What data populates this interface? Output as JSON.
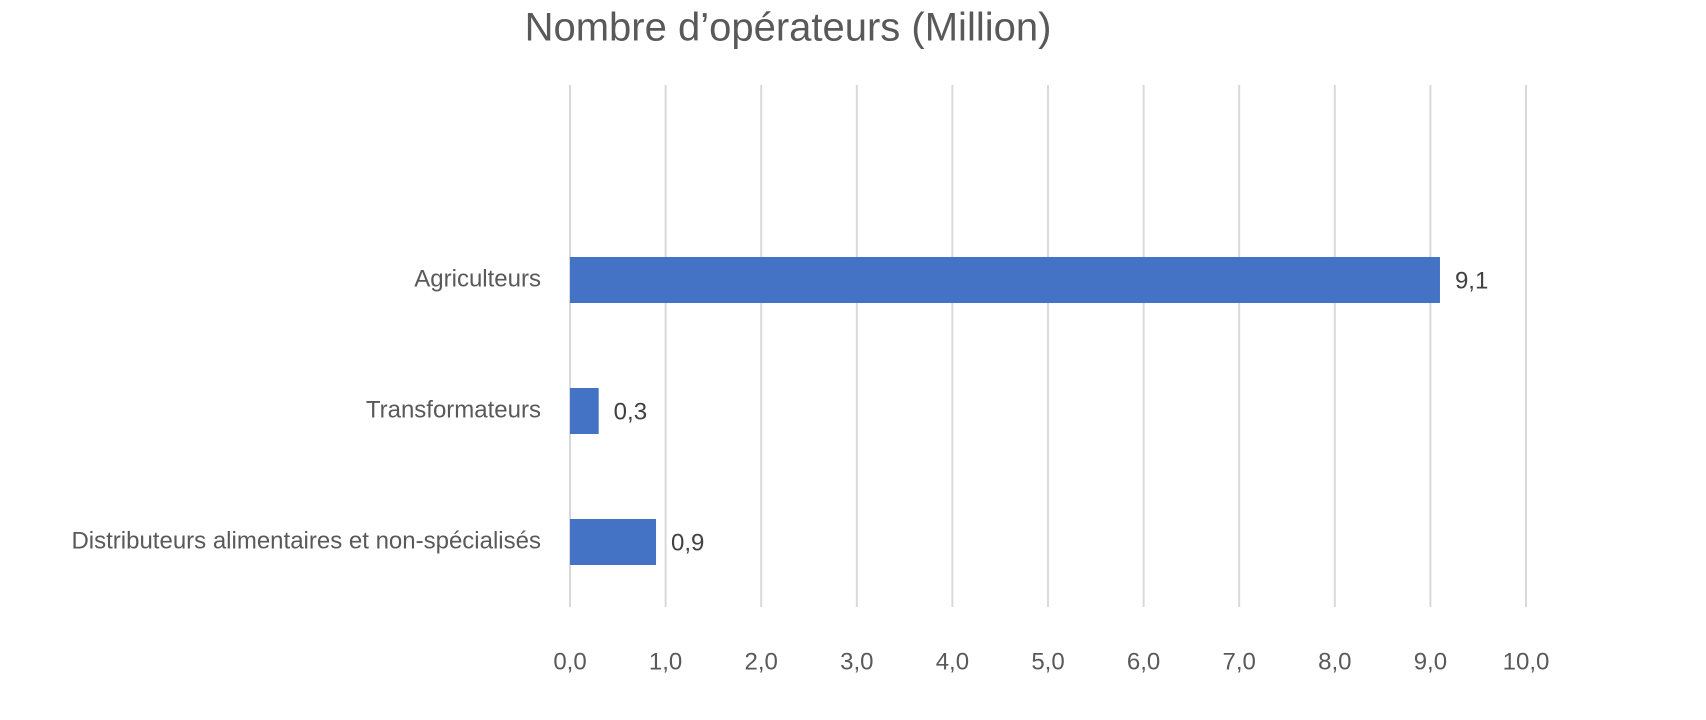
{
  "chart_data": {
    "type": "bar",
    "orientation": "horizontal",
    "title": "Nombre d’opérateurs (Million)",
    "categories": [
      "Agriculteurs",
      "Transformateurs",
      "Distributeurs alimentaires et non-spécialisés"
    ],
    "values": [
      9.1,
      0.3,
      0.9
    ],
    "value_labels": [
      "9,1",
      "0,3",
      "0,9"
    ],
    "color": "#4472c4",
    "xlim": [
      0,
      10
    ],
    "xticks": [
      {
        "value": 0,
        "label": "0,0"
      },
      {
        "value": 1,
        "label": "1,0"
      },
      {
        "value": 2,
        "label": "2,0"
      },
      {
        "value": 3,
        "label": "3,0"
      },
      {
        "value": 4,
        "label": "4,0"
      },
      {
        "value": 5,
        "label": "5,0"
      },
      {
        "value": 6,
        "label": "6,0"
      },
      {
        "value": 7,
        "label": "7,0"
      },
      {
        "value": 8,
        "label": "8,0"
      },
      {
        "value": 9,
        "label": "9,0"
      },
      {
        "value": 10,
        "label": "10,0"
      }
    ],
    "grid": true
  }
}
